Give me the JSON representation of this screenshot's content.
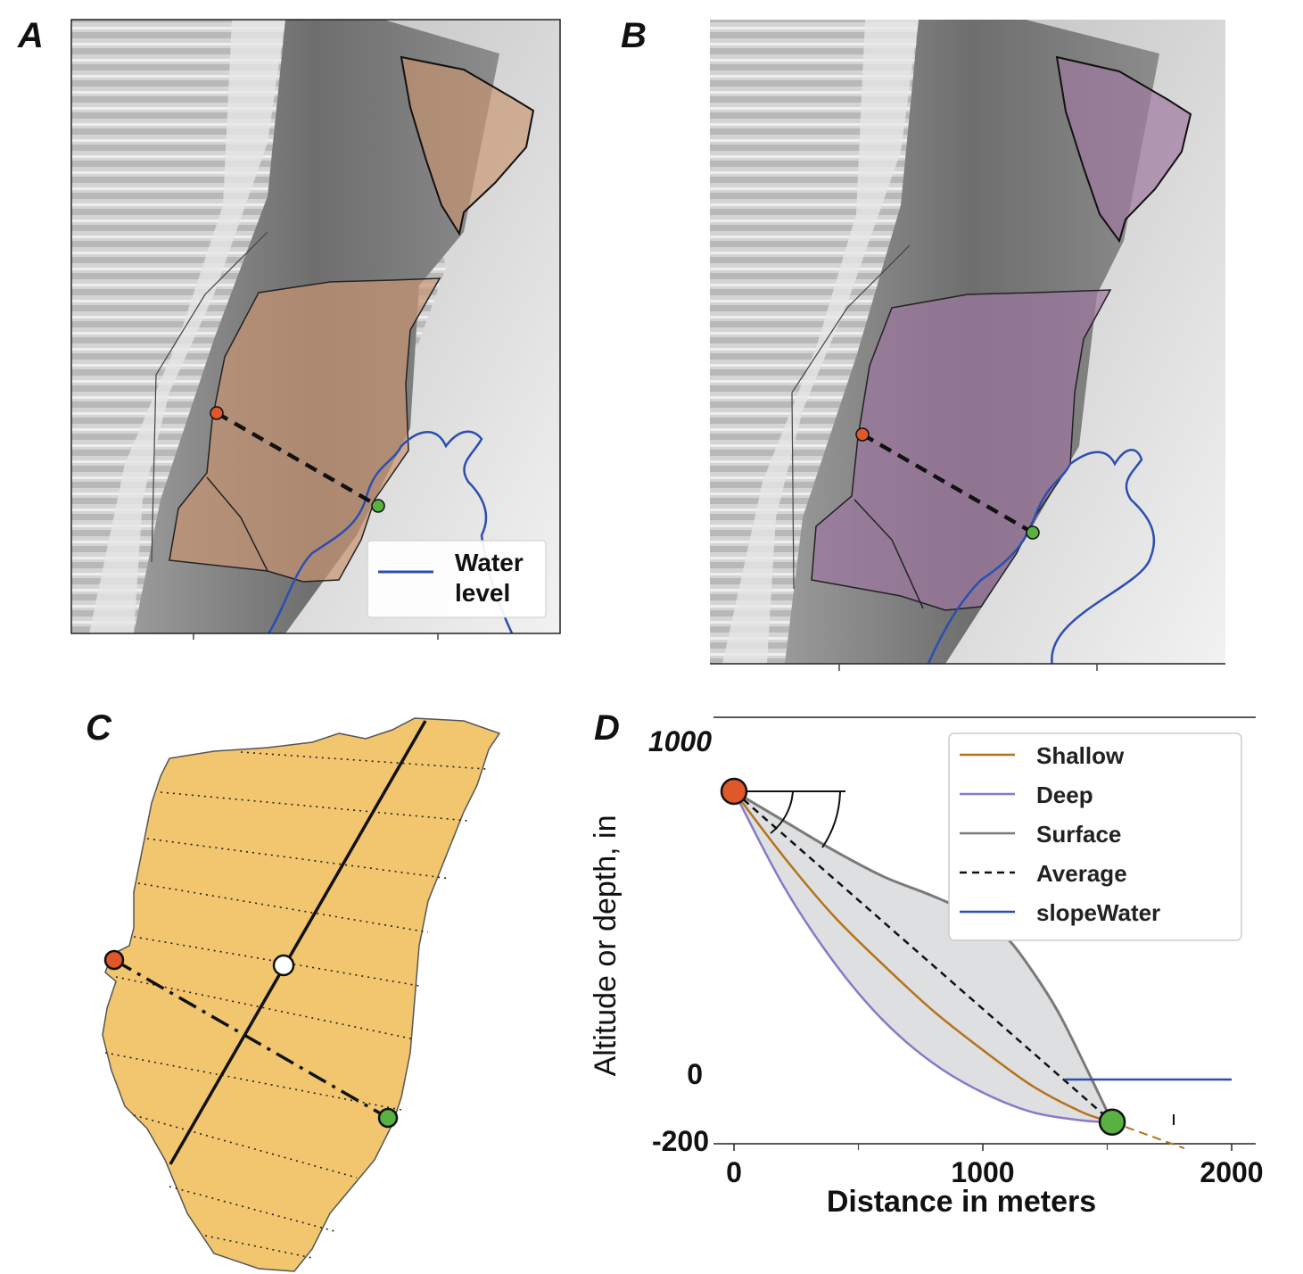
{
  "panels": {
    "a": "A",
    "b": "B",
    "c": "C",
    "d": "D"
  },
  "map_legend": {
    "line1": "Water",
    "line2": "level",
    "color": "#2b4fb0"
  },
  "colors": {
    "orange_point": "#e0572a",
    "green_point": "#57b241",
    "landslide_fill": "#f2c26b",
    "shallow": "#b5731c",
    "deep": "#8a78c8",
    "surface": "#7a7a7a",
    "water": "#2b4fb0"
  },
  "chart_data": {
    "type": "line",
    "xlabel": "Distance in meters",
    "ylabel": "Altitude or depth, in",
    "xlim": [
      0,
      2100
    ],
    "ylim": [
      -200,
      1000
    ],
    "x_ticks": [
      {
        "value": 0,
        "label": "0"
      },
      {
        "value": 1000,
        "label": "1000"
      },
      {
        "value": 2000,
        "label": "2000"
      }
    ],
    "y_ticks": [
      {
        "value": 1000,
        "label": "1000"
      },
      {
        "value": 0,
        "label": "0"
      },
      {
        "value": -200,
        "label": "-200"
      }
    ],
    "legend": [
      {
        "name": "Shallow",
        "color": "#b5731c",
        "dash": "solid"
      },
      {
        "name": "Deep",
        "color": "#8a78c8",
        "dash": "solid"
      },
      {
        "name": "Surface",
        "color": "#7a7a7a",
        "dash": "solid"
      },
      {
        "name": "Average",
        "color": "#111111",
        "dash": "dashed"
      },
      {
        "name": "slopeWater",
        "color": "#2b4fb0",
        "dash": "solid"
      }
    ],
    "series": [
      {
        "name": "Surface",
        "x": [
          0,
          200,
          400,
          600,
          800,
          1000,
          1100,
          1200,
          1300,
          1400,
          1520
        ],
        "y": [
          880,
          790,
          700,
          620,
          560,
          490,
          430,
          330,
          210,
          60,
          -130
        ]
      },
      {
        "name": "Shallow",
        "x": [
          0,
          200,
          400,
          600,
          800,
          1000,
          1200,
          1400,
          1520
        ],
        "y": [
          880,
          680,
          500,
          350,
          210,
          90,
          -20,
          -100,
          -130
        ]
      },
      {
        "name": "Deep",
        "x": [
          0,
          200,
          400,
          600,
          800,
          1000,
          1200,
          1400,
          1520
        ],
        "y": [
          880,
          590,
          360,
          180,
          50,
          -40,
          -100,
          -125,
          -130
        ]
      },
      {
        "name": "Average",
        "x": [
          0,
          1520
        ],
        "y": [
          880,
          -130
        ]
      },
      {
        "name": "slopeWater",
        "x": [
          1330,
          2000
        ],
        "y": [
          0,
          0
        ]
      }
    ],
    "end_points": [
      {
        "x": 0,
        "y": 880,
        "color": "#e0572a"
      },
      {
        "x": 1520,
        "y": -130,
        "color": "#57b241"
      }
    ],
    "extension": {
      "x": [
        1520,
        1810
      ],
      "y": [
        -130,
        -210
      ],
      "color": "#b5731c"
    }
  }
}
